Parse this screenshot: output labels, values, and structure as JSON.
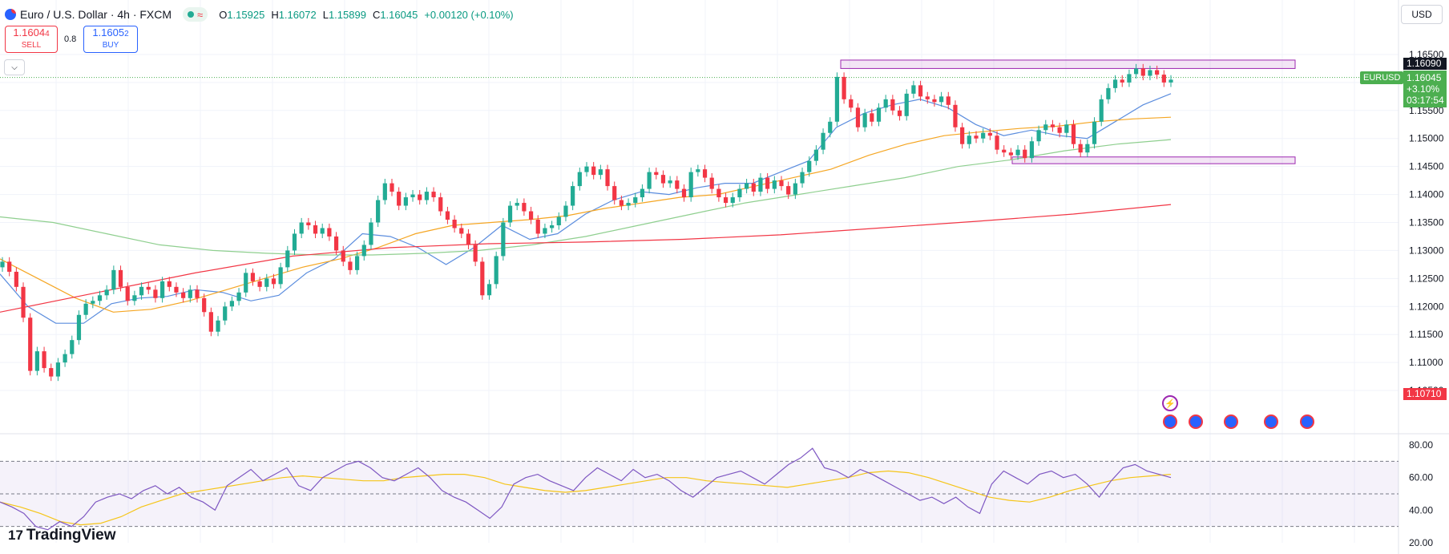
{
  "header": {
    "symbol_title": "Euro / U.S. Dollar · 4h · FXCM",
    "wave_icon": "≈",
    "ohlc": [
      {
        "k": "O",
        "v": "1.15925"
      },
      {
        "k": "H",
        "v": "1.16072"
      },
      {
        "k": "L",
        "v": "1.15899"
      },
      {
        "k": "C",
        "v": "1.16045"
      },
      {
        "k": "",
        "v": "+0.00120 (+0.10%)"
      }
    ]
  },
  "trade": {
    "sell_price": "1.1604",
    "sell_sup": "4",
    "sell_label": "SELL",
    "spread": "0.8",
    "buy_price": "1.1605",
    "buy_sup": "2",
    "buy_label": "BUY"
  },
  "currency": "USD",
  "price_tags": {
    "high_line": "1.16090",
    "symbol": "EURUSD",
    "last_price": "1.16045",
    "change_pct": "+3.10%",
    "countdown": "03:17:54",
    "low_line": "1.10710"
  },
  "branding": {
    "logo_text": "TradingView",
    "logo_mark": "17"
  },
  "colors": {
    "up": "#22ab94",
    "down": "#f23645",
    "sma_fast": "#5b8dde",
    "sma_mid": "#f5a623",
    "sma_slow": "#8fcf8f",
    "sma_long": "#f23645",
    "rsi": "#7e57c2",
    "rsi_ma": "#f5c518",
    "zone": "#9c27b0"
  },
  "chart_data": [
    {
      "type": "candlestick",
      "title": "Euro / U.S. Dollar · 4h · FXCM",
      "y_axis_labels": [
        "1.16500",
        "1.16000",
        "1.15500",
        "1.15000",
        "1.14500",
        "1.14000",
        "1.13500",
        "1.13000",
        "1.12500",
        "1.12000",
        "1.11500",
        "1.11000",
        "1.10500"
      ],
      "ylim": [
        1.102,
        1.168
      ],
      "close": [
        1.128,
        1.1262,
        1.1235,
        1.118,
        1.1085,
        1.112,
        1.109,
        1.1075,
        1.11,
        1.1115,
        1.114,
        1.1185,
        1.1205,
        1.121,
        1.122,
        1.123,
        1.1265,
        1.1235,
        1.121,
        1.122,
        1.1235,
        1.123,
        1.1215,
        1.1245,
        1.1235,
        1.1225,
        1.1215,
        1.123,
        1.1215,
        1.119,
        1.1155,
        1.1175,
        1.12,
        1.121,
        1.1225,
        1.126,
        1.1245,
        1.1235,
        1.125,
        1.124,
        1.127,
        1.13,
        1.133,
        1.135,
        1.1345,
        1.133,
        1.134,
        1.1325,
        1.13,
        1.128,
        1.1265,
        1.129,
        1.131,
        1.135,
        1.139,
        1.142,
        1.1405,
        1.138,
        1.1395,
        1.14,
        1.139,
        1.1405,
        1.1395,
        1.137,
        1.1355,
        1.134,
        1.133,
        1.131,
        1.128,
        1.122,
        1.124,
        1.129,
        1.135,
        1.138,
        1.1385,
        1.137,
        1.1355,
        1.133,
        1.134,
        1.1345,
        1.136,
        1.138,
        1.1415,
        1.144,
        1.145,
        1.1435,
        1.1445,
        1.1415,
        1.139,
        1.138,
        1.1385,
        1.1395,
        1.141,
        1.144,
        1.1435,
        1.142,
        1.1425,
        1.141,
        1.1395,
        1.144,
        1.1445,
        1.143,
        1.141,
        1.1395,
        1.1385,
        1.1395,
        1.141,
        1.142,
        1.1405,
        1.143,
        1.141,
        1.1425,
        1.1415,
        1.14,
        1.142,
        1.144,
        1.146,
        1.148,
        1.151,
        1.153,
        1.161,
        1.157,
        1.1555,
        1.152,
        1.1545,
        1.153,
        1.1555,
        1.157,
        1.155,
        1.154,
        1.158,
        1.1595,
        1.1575,
        1.157,
        1.1565,
        1.1575,
        1.156,
        1.152,
        1.149,
        1.1505,
        1.15,
        1.151,
        1.1505,
        1.148,
        1.1475,
        1.147,
        1.148,
        1.1465,
        1.1495,
        1.1515,
        1.1525,
        1.152,
        1.151,
        1.1525,
        1.149,
        1.1475,
        1.149,
        1.153,
        1.157,
        1.159,
        1.1605,
        1.16,
        1.1615,
        1.1625,
        1.1612,
        1.1622,
        1.1614,
        1.16,
        1.1605
      ],
      "sma_fast": [
        1.1258,
        1.12,
        1.117,
        1.117,
        1.1205,
        1.1215,
        1.1218,
        1.123,
        1.1225,
        1.121,
        1.122,
        1.126,
        1.1285,
        1.133,
        1.1325,
        1.1305,
        1.1275,
        1.1305,
        1.1345,
        1.132,
        1.133,
        1.1365,
        1.139,
        1.1405,
        1.14,
        1.1412,
        1.142,
        1.142,
        1.144,
        1.146,
        1.152,
        1.1545,
        1.156,
        1.157,
        1.1555,
        1.1525,
        1.1505,
        1.1515,
        1.1505,
        1.15,
        1.153,
        1.156,
        1.158
      ],
      "sma_mid": [
        1.1285,
        1.125,
        1.1215,
        1.119,
        1.1195,
        1.121,
        1.123,
        1.125,
        1.127,
        1.1285,
        1.1305,
        1.133,
        1.1345,
        1.135,
        1.1355,
        1.1362,
        1.1375,
        1.1385,
        1.1395,
        1.14,
        1.1415,
        1.143,
        1.1445,
        1.147,
        1.149,
        1.1505,
        1.1512,
        1.1518,
        1.1522,
        1.153,
        1.1535,
        1.1538
      ],
      "sma_slow": [
        1.136,
        1.135,
        1.133,
        1.131,
        1.13,
        1.1295,
        1.1292,
        1.1292,
        1.1295,
        1.13,
        1.131,
        1.1325,
        1.1345,
        1.1365,
        1.1385,
        1.14,
        1.1415,
        1.143,
        1.145,
        1.1462,
        1.1478,
        1.149,
        1.1498
      ],
      "sma_long": [
        1.119,
        1.1225,
        1.126,
        1.129,
        1.1305,
        1.1312,
        1.1315,
        1.132,
        1.1328,
        1.134,
        1.1352,
        1.1365,
        1.1382
      ],
      "zones": [
        {
          "name": "resistance",
          "from": 1.1625,
          "to": 1.164
        },
        {
          "name": "support",
          "from": 1.1455,
          "to": 1.1467
        }
      ]
    },
    {
      "type": "line",
      "y_axis_labels": [
        "80.00",
        "60.00",
        "40.00",
        "20.00"
      ],
      "ylim": [
        20,
        80
      ],
      "bands": [
        30,
        70
      ],
      "rsi": [
        45,
        42,
        38,
        30,
        28,
        33,
        30,
        36,
        45,
        48,
        50,
        47,
        52,
        55,
        50,
        54,
        48,
        45,
        40,
        55,
        60,
        65,
        58,
        62,
        66,
        55,
        52,
        60,
        64,
        68,
        70,
        66,
        60,
        58,
        62,
        66,
        60,
        52,
        48,
        45,
        40,
        35,
        42,
        56,
        60,
        62,
        58,
        55,
        52,
        60,
        66,
        62,
        58,
        65,
        60,
        62,
        58,
        52,
        48,
        54,
        60,
        62,
        64,
        60,
        56,
        62,
        68,
        72,
        78,
        66,
        64,
        60,
        65,
        62,
        58,
        54,
        50,
        46,
        48,
        44,
        48,
        42,
        38,
        56,
        64,
        60,
        56,
        62,
        64,
        60,
        62,
        56,
        48,
        58,
        66,
        68,
        64,
        62,
        60
      ],
      "rsi_ma": [
        45,
        42,
        38,
        33,
        31,
        32,
        36,
        42,
        46,
        50,
        52,
        54,
        56,
        58,
        60,
        61,
        60,
        59,
        58,
        58,
        60,
        61,
        62,
        62,
        60,
        56,
        54,
        52,
        51,
        52,
        54,
        56,
        58,
        60,
        60,
        58,
        57,
        56,
        55,
        54,
        56,
        58,
        60,
        63,
        64,
        63,
        60,
        56,
        52,
        48,
        46,
        45,
        48,
        52,
        55,
        58,
        60,
        61,
        62
      ]
    }
  ]
}
